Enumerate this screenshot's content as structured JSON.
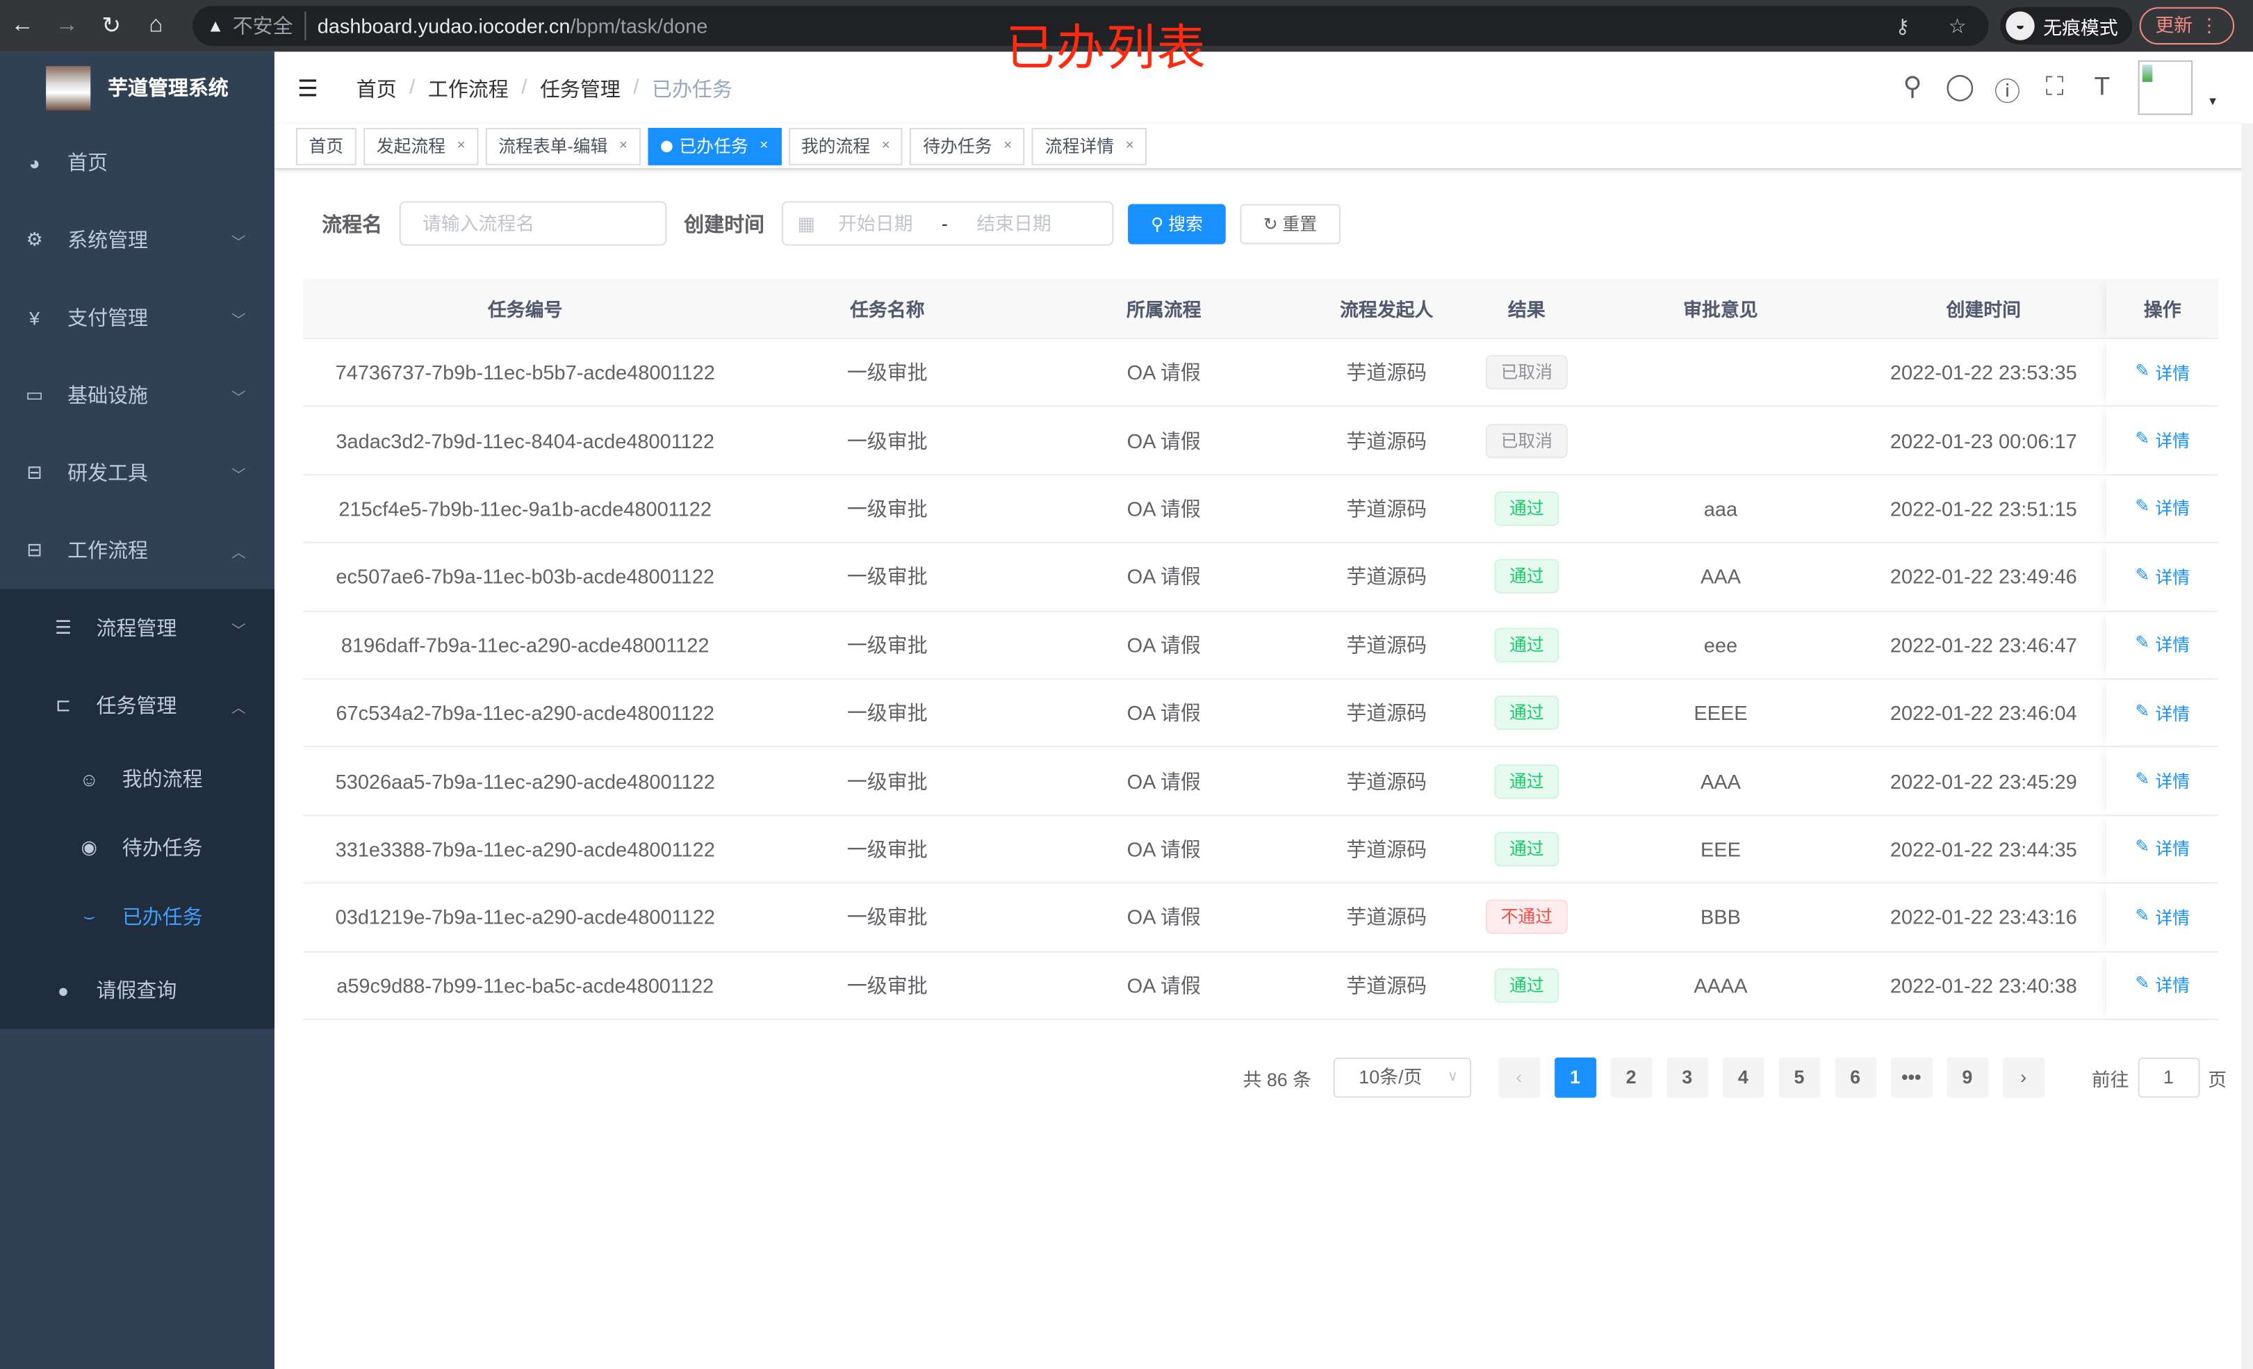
{
  "browser": {
    "insecure_label": "不安全",
    "url_host": "dashboard.yudao.iocoder.cn",
    "url_path": "/bpm/task/done",
    "incognito_label": "无痕模式",
    "update_label": "更新"
  },
  "overlay_title": "已办列表",
  "sidebar": {
    "app_title": "芋道管理系统",
    "items": [
      {
        "label": "首页",
        "icon": "dashboard-icon"
      },
      {
        "label": "系统管理",
        "icon": "gear-icon"
      },
      {
        "label": "支付管理",
        "icon": "yen-icon"
      },
      {
        "label": "基础设施",
        "icon": "monitor-icon"
      },
      {
        "label": "研发工具",
        "icon": "toolbox-icon"
      },
      {
        "label": "工作流程",
        "icon": "toolbox-icon"
      }
    ],
    "sub_items": [
      {
        "label": "流程管理",
        "icon": "list-icon"
      },
      {
        "label": "任务管理",
        "icon": "tree-icon"
      },
      {
        "label": "我的流程",
        "icon": "user-icon"
      },
      {
        "label": "待办任务",
        "icon": "eye-icon"
      },
      {
        "label": "已办任务",
        "icon": "check-icon"
      },
      {
        "label": "请假查询",
        "icon": "person-icon"
      }
    ]
  },
  "breadcrumb": [
    "首页",
    "工作流程",
    "任务管理",
    "已办任务"
  ],
  "tags": [
    {
      "label": "首页",
      "closable": false,
      "active": false
    },
    {
      "label": "发起流程",
      "closable": true,
      "active": false
    },
    {
      "label": "流程表单-编辑",
      "closable": true,
      "active": false
    },
    {
      "label": "已办任务",
      "closable": true,
      "active": true
    },
    {
      "label": "我的流程",
      "closable": true,
      "active": false
    },
    {
      "label": "待办任务",
      "closable": true,
      "active": false
    },
    {
      "label": "流程详情",
      "closable": true,
      "active": false
    }
  ],
  "search": {
    "name_label": "流程名",
    "name_placeholder": "请输入流程名",
    "time_label": "创建时间",
    "start_placeholder": "开始日期",
    "range_sep": "-",
    "end_placeholder": "结束日期",
    "search_btn": "搜索",
    "reset_btn": "重置"
  },
  "table": {
    "columns": [
      "任务编号",
      "任务名称",
      "所属流程",
      "流程发起人",
      "结果",
      "审批意见",
      "创建时间",
      "操作"
    ],
    "action_label": "详情",
    "rows": [
      {
        "id": "74736737-7b9b-11ec-b5b7-acde48001122",
        "name": "一级审批",
        "process": "OA 请假",
        "starter": "芋道源码",
        "result": "已取消",
        "result_type": "info",
        "comment": "",
        "time": "2022-01-22 23:53:35"
      },
      {
        "id": "3adac3d2-7b9d-11ec-8404-acde48001122",
        "name": "一级审批",
        "process": "OA 请假",
        "starter": "芋道源码",
        "result": "已取消",
        "result_type": "info",
        "comment": "",
        "time": "2022-01-23 00:06:17"
      },
      {
        "id": "215cf4e5-7b9b-11ec-9a1b-acde48001122",
        "name": "一级审批",
        "process": "OA 请假",
        "starter": "芋道源码",
        "result": "通过",
        "result_type": "success",
        "comment": "aaa",
        "time": "2022-01-22 23:51:15"
      },
      {
        "id": "ec507ae6-7b9a-11ec-b03b-acde48001122",
        "name": "一级审批",
        "process": "OA 请假",
        "starter": "芋道源码",
        "result": "通过",
        "result_type": "success",
        "comment": "AAA",
        "time": "2022-01-22 23:49:46"
      },
      {
        "id": "8196daff-7b9a-11ec-a290-acde48001122",
        "name": "一级审批",
        "process": "OA 请假",
        "starter": "芋道源码",
        "result": "通过",
        "result_type": "success",
        "comment": "eee",
        "time": "2022-01-22 23:46:47"
      },
      {
        "id": "67c534a2-7b9a-11ec-a290-acde48001122",
        "name": "一级审批",
        "process": "OA 请假",
        "starter": "芋道源码",
        "result": "通过",
        "result_type": "success",
        "comment": "EEEE",
        "time": "2022-01-22 23:46:04"
      },
      {
        "id": "53026aa5-7b9a-11ec-a290-acde48001122",
        "name": "一级审批",
        "process": "OA 请假",
        "starter": "芋道源码",
        "result": "通过",
        "result_type": "success",
        "comment": "AAA",
        "time": "2022-01-22 23:45:29"
      },
      {
        "id": "331e3388-7b9a-11ec-a290-acde48001122",
        "name": "一级审批",
        "process": "OA 请假",
        "starter": "芋道源码",
        "result": "通过",
        "result_type": "success",
        "comment": "EEE",
        "time": "2022-01-22 23:44:35"
      },
      {
        "id": "03d1219e-7b9a-11ec-a290-acde48001122",
        "name": "一级审批",
        "process": "OA 请假",
        "starter": "芋道源码",
        "result": "不通过",
        "result_type": "danger",
        "comment": "BBB",
        "time": "2022-01-22 23:43:16"
      },
      {
        "id": "a59c9d88-7b99-11ec-ba5c-acde48001122",
        "name": "一级审批",
        "process": "OA 请假",
        "starter": "芋道源码",
        "result": "通过",
        "result_type": "success",
        "comment": "AAAA",
        "time": "2022-01-22 23:40:38"
      }
    ]
  },
  "pagination": {
    "total_label": "共 86 条",
    "page_size": "10条/页",
    "pages": [
      "1",
      "2",
      "3",
      "4",
      "5",
      "6",
      "•••",
      "9"
    ],
    "current": "1",
    "goto_prefix": "前往",
    "goto_value": "1",
    "goto_suffix": "页"
  },
  "colors": {
    "sidebar_bg": "#304156",
    "submenu_bg": "#1f2d3d",
    "primary": "#1890ff",
    "success": "#13ce66",
    "danger": "#ff4949",
    "overlay_red": "#ff2a10"
  }
}
